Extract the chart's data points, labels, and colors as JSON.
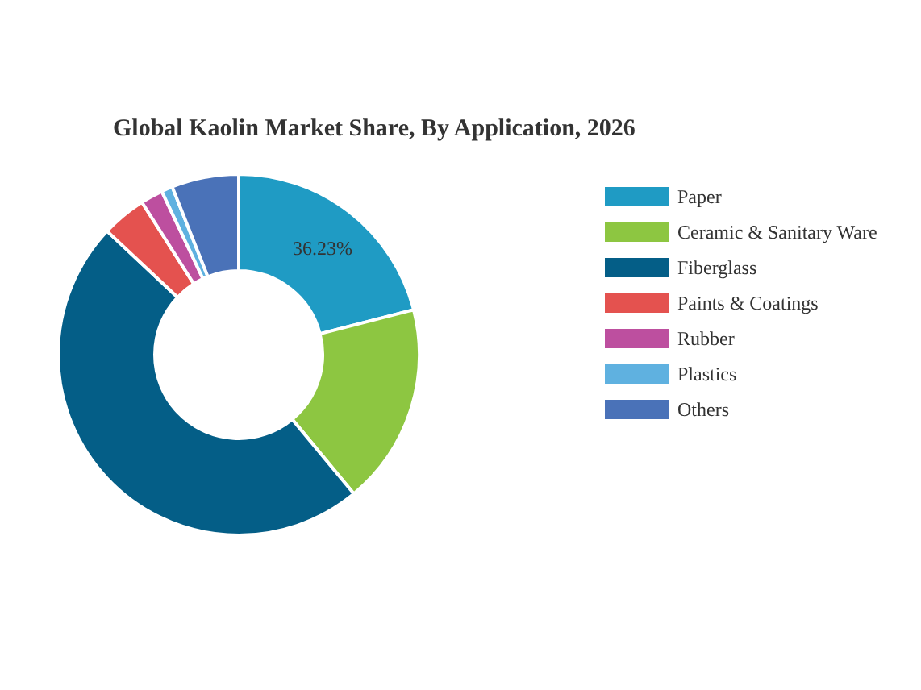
{
  "chart_data": {
    "type": "donut",
    "title": "Global Kaolin Market Share, By Application, 2026",
    "categories": [
      "Paper",
      "Ceramic & Sanitary Ware",
      "Fiberglass",
      "Paints & Coatings",
      "Rubber",
      "Plastics",
      "Others"
    ],
    "values": [
      21,
      18,
      48,
      4,
      2,
      1,
      6
    ],
    "colors": [
      "#1f9bc4",
      "#8dc641",
      "#045e87",
      "#e4524f",
      "#bd4f9f",
      "#5fb1e0",
      "#4a72b8"
    ],
    "annotations": [
      "36.23%"
    ],
    "legend": "right"
  }
}
